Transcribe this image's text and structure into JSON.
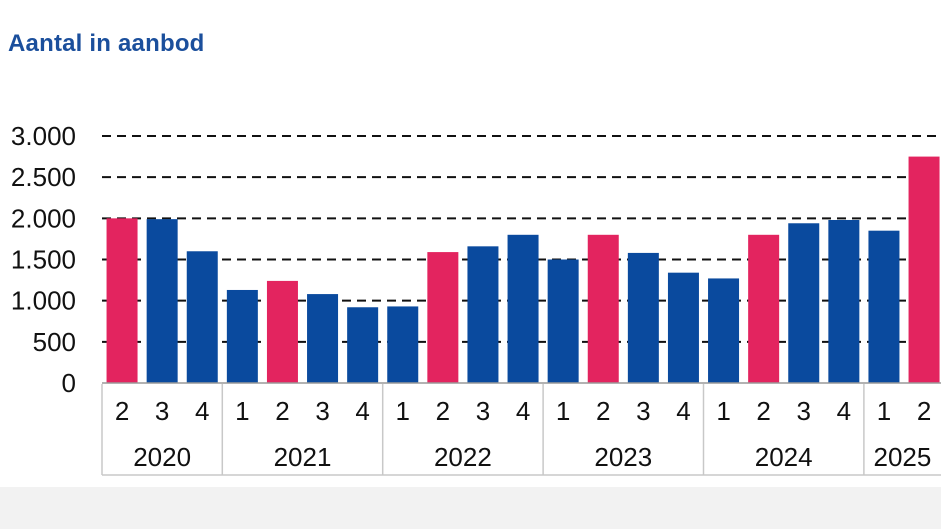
{
  "title": "Aantal in aanbod",
  "colors": {
    "pink": "#e3245f",
    "blue": "#0a4a9e"
  },
  "chart_data": {
    "type": "bar",
    "title": "Aantal in aanbod",
    "xlabel": "",
    "ylabel": "",
    "ylim": [
      0,
      3000
    ],
    "yticks": [
      0,
      500,
      1000,
      1500,
      2000,
      2500,
      3000
    ],
    "ytick_labels": [
      "0",
      "500",
      "1.000",
      "1.500",
      "2.000",
      "2.500",
      "3.000"
    ],
    "grid": "dashed horizontal",
    "years": [
      {
        "label": "2020",
        "quarters": [
          "2",
          "3",
          "4"
        ]
      },
      {
        "label": "2021",
        "quarters": [
          "1",
          "2",
          "3",
          "4"
        ]
      },
      {
        "label": "2022",
        "quarters": [
          "1",
          "2",
          "3",
          "4"
        ]
      },
      {
        "label": "2023",
        "quarters": [
          "1",
          "2",
          "3",
          "4"
        ]
      },
      {
        "label": "2024",
        "quarters": [
          "1",
          "2",
          "3",
          "4"
        ]
      },
      {
        "label": "2025",
        "quarters": [
          "1",
          "2"
        ]
      }
    ],
    "bars": [
      {
        "year": "2020",
        "quarter": "2",
        "value": 2000,
        "highlight": true
      },
      {
        "year": "2020",
        "quarter": "3",
        "value": 1990,
        "highlight": false
      },
      {
        "year": "2020",
        "quarter": "4",
        "value": 1600,
        "highlight": false
      },
      {
        "year": "2021",
        "quarter": "1",
        "value": 1130,
        "highlight": false
      },
      {
        "year": "2021",
        "quarter": "2",
        "value": 1240,
        "highlight": true
      },
      {
        "year": "2021",
        "quarter": "3",
        "value": 1080,
        "highlight": false
      },
      {
        "year": "2021",
        "quarter": "4",
        "value": 920,
        "highlight": false
      },
      {
        "year": "2022",
        "quarter": "1",
        "value": 930,
        "highlight": false
      },
      {
        "year": "2022",
        "quarter": "2",
        "value": 1590,
        "highlight": true
      },
      {
        "year": "2022",
        "quarter": "3",
        "value": 1660,
        "highlight": false
      },
      {
        "year": "2022",
        "quarter": "4",
        "value": 1800,
        "highlight": false
      },
      {
        "year": "2023",
        "quarter": "1",
        "value": 1500,
        "highlight": false
      },
      {
        "year": "2023",
        "quarter": "2",
        "value": 1800,
        "highlight": true
      },
      {
        "year": "2023",
        "quarter": "3",
        "value": 1580,
        "highlight": false
      },
      {
        "year": "2023",
        "quarter": "4",
        "value": 1340,
        "highlight": false
      },
      {
        "year": "2024",
        "quarter": "1",
        "value": 1270,
        "highlight": false
      },
      {
        "year": "2024",
        "quarter": "2",
        "value": 1800,
        "highlight": true
      },
      {
        "year": "2024",
        "quarter": "3",
        "value": 1940,
        "highlight": false
      },
      {
        "year": "2024",
        "quarter": "4",
        "value": 1980,
        "highlight": false
      },
      {
        "year": "2025",
        "quarter": "1",
        "value": 1850,
        "highlight": false
      },
      {
        "year": "2025",
        "quarter": "2",
        "value": 2750,
        "highlight": true
      }
    ]
  }
}
